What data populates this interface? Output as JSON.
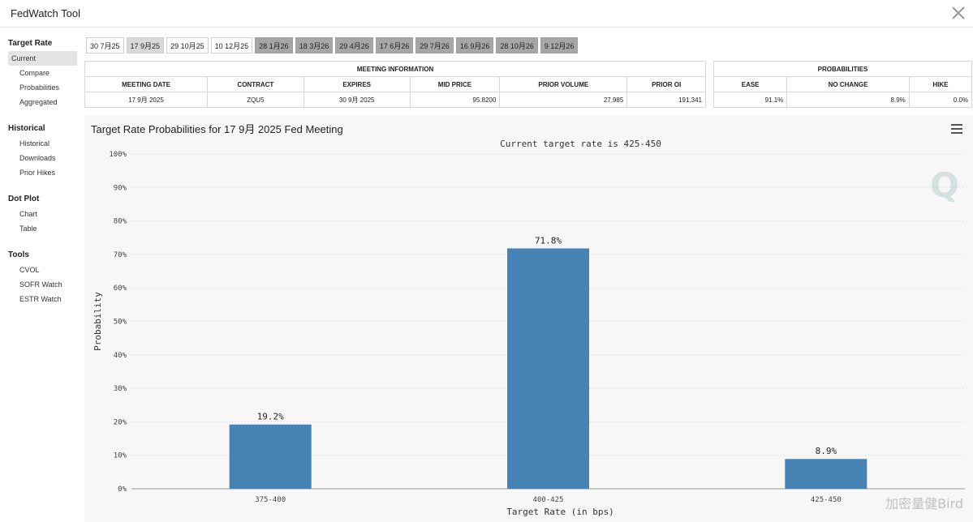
{
  "app": {
    "title": "FedWatch Tool"
  },
  "sidebar": {
    "sections": [
      {
        "heading": "Target Rate",
        "items": [
          "Current",
          "Compare",
          "Probabilities",
          "Aggregated"
        ]
      },
      {
        "heading": "Historical",
        "items": [
          "Historical",
          "Downloads",
          "Prior Hikes"
        ]
      },
      {
        "heading": "Dot Plot",
        "items": [
          "Chart",
          "Table"
        ]
      },
      {
        "heading": "Tools",
        "items": [
          "CVOL",
          "SOFR Watch",
          "ESTR Watch"
        ]
      }
    ]
  },
  "meeting_tabs": [
    "30 7月25",
    "17 9月25",
    "29 10月25",
    "10 12月25",
    "28 1月26",
    "18 3月26",
    "29 4月26",
    "17 6月26",
    "29 7月26",
    "16 9月26",
    "28 10月26",
    "9 12月26"
  ],
  "meeting_info": {
    "heading": "MEETING INFORMATION",
    "columns": [
      "MEETING DATE",
      "CONTRACT",
      "EXPIRES",
      "MID PRICE",
      "PRIOR VOLUME",
      "PRIOR OI"
    ],
    "row": [
      "17 9月 2025",
      "ZQU5",
      "30 9月 2025",
      "95.8200",
      "27,985",
      "191,341"
    ]
  },
  "probabilities": {
    "heading": "PROBABILITIES",
    "columns": [
      "EASE",
      "NO CHANGE",
      "HIKE"
    ],
    "row": [
      "91.1%",
      "8.9%",
      "0.0%"
    ]
  },
  "chart_header": {
    "title": "Target Rate Probabilities for 17 9月 2025 Fed Meeting"
  },
  "chart_data": {
    "type": "bar",
    "title": "Target Rate Probabilities for 17 9月 2025 Fed Meeting",
    "subtitle": "Current target rate is 425-450",
    "categories": [
      "375-400",
      "400-425",
      "425-450"
    ],
    "values": [
      19.2,
      71.8,
      8.9
    ],
    "value_labels": [
      "19.2%",
      "71.8%",
      "8.9%"
    ],
    "xlabel": "Target Rate (in bps)",
    "ylabel": "Probability",
    "ylim": [
      0,
      100
    ],
    "yticks": [
      "0%",
      "10%",
      "20%",
      "30%",
      "40%",
      "50%",
      "60%",
      "70%",
      "80%",
      "90%",
      "100%"
    ],
    "grid": true,
    "bar_color": "#4682b4"
  },
  "watermark": "加密量健Bird",
  "colors": {
    "bar": "#4682b4",
    "dark_tab": "#a6a6a6",
    "selected_tab": "#d9d9d9"
  }
}
